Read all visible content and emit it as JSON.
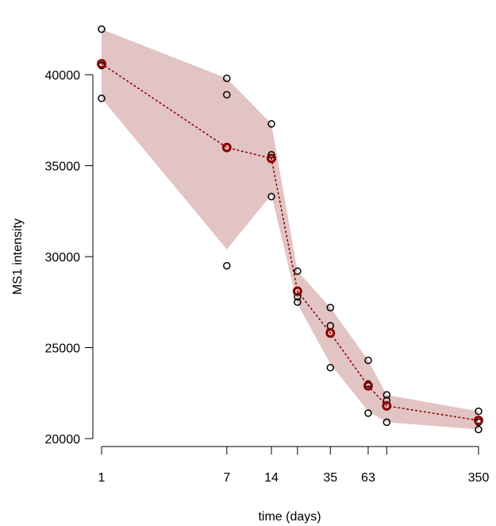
{
  "chart_data": {
    "type": "scatter",
    "title": "",
    "xlabel": "time (days)",
    "ylabel": "MS1 intensity",
    "xscale": "log",
    "xticks": [
      1,
      7,
      14,
      21,
      35,
      63,
      84,
      350
    ],
    "xtick_labels": [
      "1",
      "7",
      "14",
      "",
      "35",
      "63",
      "",
      "350"
    ],
    "yticks": [
      20000,
      25000,
      30000,
      35000,
      40000
    ],
    "ytick_labels": [
      "20000",
      "25000",
      "30000",
      "35000",
      "40000"
    ],
    "ylim": [
      20000,
      42500
    ],
    "grid": false,
    "legend": "none",
    "colors": {
      "band": "#e2c4c4",
      "mean": "#8b0000",
      "points": "#000000"
    },
    "series": [
      {
        "kind": "replicates",
        "points": [
          [
            1,
            42500
          ],
          [
            1,
            40600
          ],
          [
            1,
            40500
          ],
          [
            1,
            38700
          ],
          [
            7,
            39800
          ],
          [
            7,
            38900
          ],
          [
            7,
            29500
          ],
          [
            14,
            37300
          ],
          [
            14,
            35600
          ],
          [
            14,
            35400
          ],
          [
            14,
            33300
          ],
          [
            21,
            29200
          ],
          [
            21,
            27800
          ],
          [
            21,
            27500
          ],
          [
            35,
            27200
          ],
          [
            35,
            26200
          ],
          [
            35,
            23900
          ],
          [
            63,
            24300
          ],
          [
            63,
            23000
          ],
          [
            63,
            21400
          ],
          [
            84,
            22400
          ],
          [
            84,
            22100
          ],
          [
            84,
            20900
          ],
          [
            350,
            21500
          ],
          [
            350,
            20900
          ],
          [
            350,
            20500
          ]
        ]
      },
      {
        "kind": "mean",
        "x": [
          1,
          7,
          14,
          21,
          35,
          63,
          84,
          350
        ],
        "y": [
          40600,
          36000,
          35400,
          28100,
          25800,
          22900,
          21800,
          21000
        ]
      },
      {
        "kind": "band",
        "x": [
          1,
          7,
          14,
          21,
          35,
          63,
          84,
          350
        ],
        "upper": [
          42500,
          39800,
          37300,
          29200,
          27200,
          24300,
          22400,
          21500
        ],
        "lower": [
          38700,
          30400,
          33400,
          27400,
          24100,
          21500,
          20900,
          20500
        ]
      }
    ]
  }
}
